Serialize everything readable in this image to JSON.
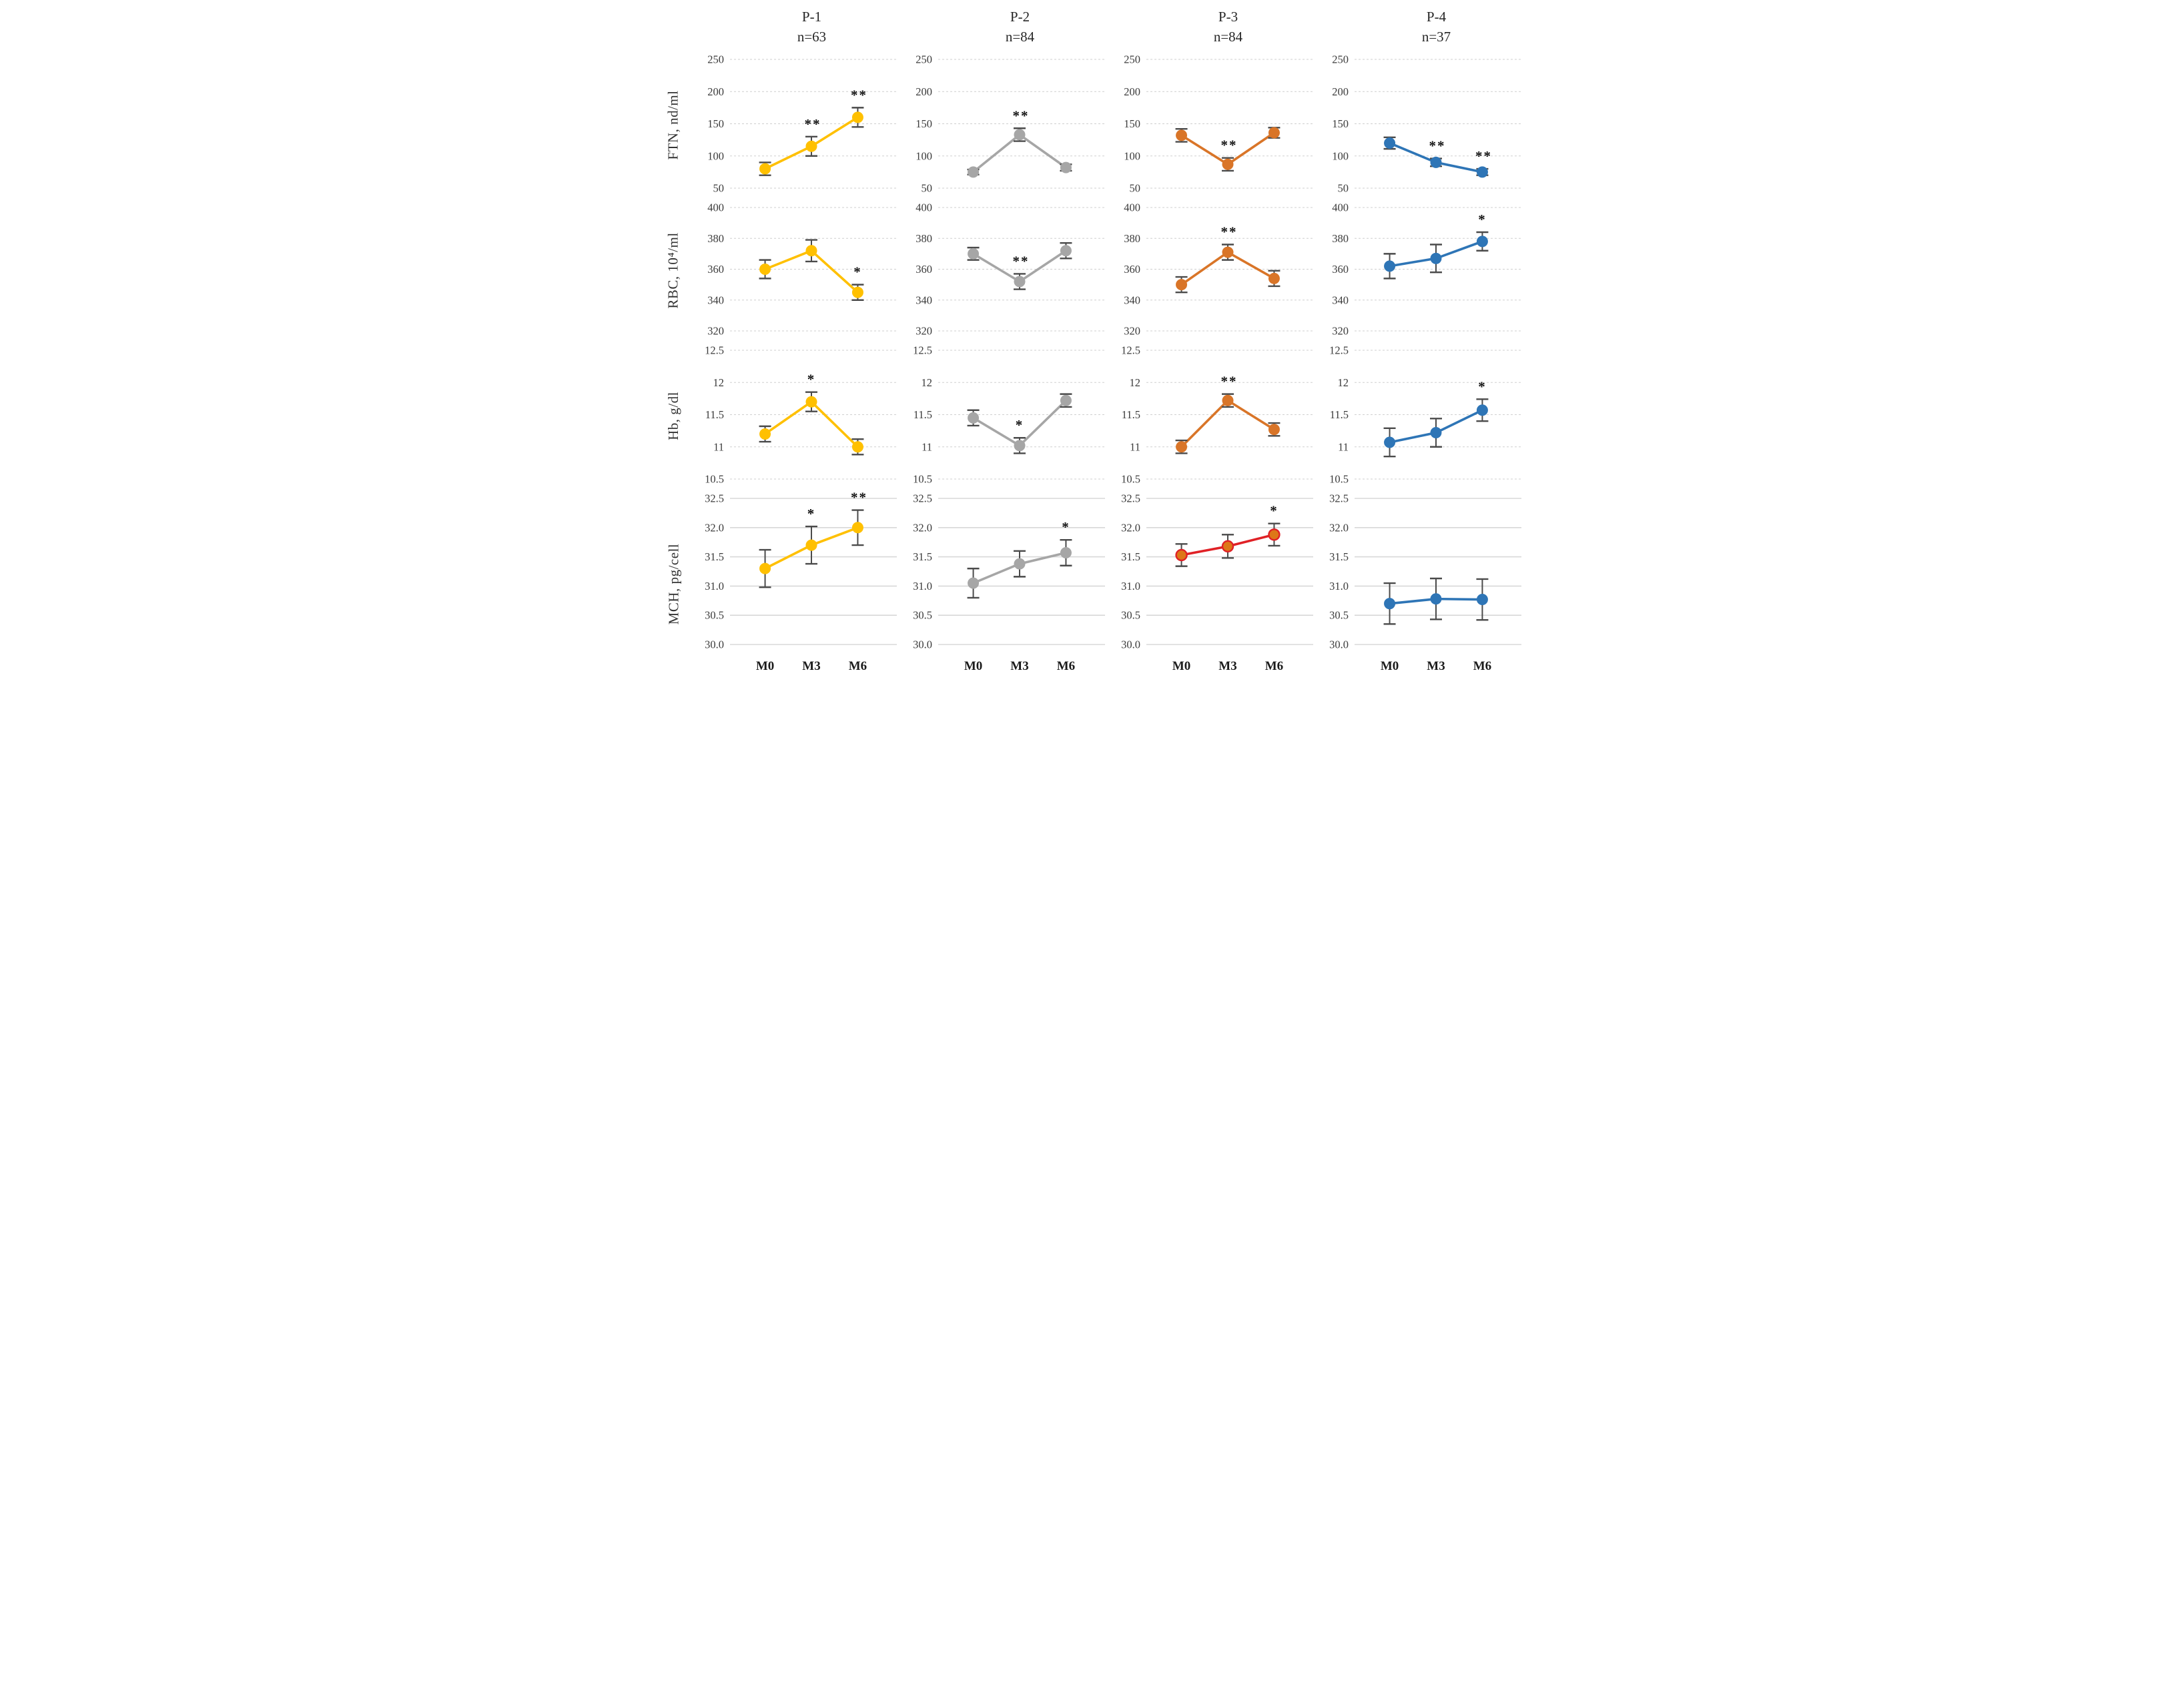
{
  "x_labels": [
    "M0",
    "M3",
    "M6"
  ],
  "chart_data": {
    "type": "line",
    "legend_position": "none",
    "grid": true,
    "x_categories": [
      "M0",
      "M3",
      "M6"
    ],
    "columns": [
      {
        "id": "P-1",
        "n": "n=63",
        "color": "#FFC000"
      },
      {
        "id": "P-2",
        "n": "n=84",
        "color": "#A6A6A6"
      },
      {
        "id": "P-3",
        "n": "n=84",
        "color": "#D97528"
      },
      {
        "id": "P-4",
        "n": "n=37",
        "color": "#2E75B6"
      }
    ],
    "rows": [
      {
        "ylabel": "FTN, nd/ml",
        "ylim": [
          50,
          250
        ],
        "tick_values": [
          250,
          200,
          150,
          100,
          50
        ],
        "tick_labels": [
          "250",
          "200",
          "150",
          "100",
          "50"
        ],
        "grid_style": "dashed",
        "series": [
          {
            "values": [
              80,
              115,
              160
            ],
            "errors": [
              10,
              15,
              15
            ],
            "sig": [
              "",
              "**",
              "**"
            ]
          },
          {
            "values": [
              75,
              133,
              82
            ],
            "errors": [
              4,
              10,
              5
            ],
            "sig": [
              "",
              "**",
              ""
            ]
          },
          {
            "values": [
              132,
              87,
              136
            ],
            "errors": [
              10,
              10,
              8
            ],
            "sig": [
              "",
              "**",
              ""
            ]
          },
          {
            "values": [
              120,
              90,
              75
            ],
            "errors": [
              9,
              6,
              5
            ],
            "sig": [
              "",
              "**",
              "**"
            ]
          }
        ]
      },
      {
        "ylabel": "RBC, 10⁴/ml",
        "ylim": [
          320,
          400
        ],
        "tick_values": [
          400,
          380,
          360,
          340,
          320
        ],
        "tick_labels": [
          "400",
          "380",
          "360",
          "340",
          "320"
        ],
        "grid_style": "dashed",
        "series": [
          {
            "values": [
              360,
              372,
              345
            ],
            "errors": [
              6,
              7,
              5
            ],
            "sig": [
              "",
              "",
              "*"
            ]
          },
          {
            "values": [
              370,
              352,
              372
            ],
            "errors": [
              4,
              5,
              5
            ],
            "sig": [
              "",
              "**",
              ""
            ]
          },
          {
            "values": [
              350,
              371,
              354
            ],
            "errors": [
              5,
              5,
              5
            ],
            "sig": [
              "",
              "**",
              ""
            ]
          },
          {
            "values": [
              362,
              367,
              378
            ],
            "errors": [
              8,
              9,
              6
            ],
            "sig": [
              "",
              "",
              "*"
            ]
          }
        ]
      },
      {
        "ylabel": "Hb, g/dl",
        "ylim": [
          10.5,
          12.5
        ],
        "tick_values": [
          12.5,
          12,
          11.5,
          11,
          10.5
        ],
        "tick_labels": [
          "12.5",
          "12",
          "11.5",
          "11",
          "10.5"
        ],
        "grid_style": "dashed",
        "series": [
          {
            "values": [
              11.2,
              11.7,
              11.0
            ],
            "errors": [
              0.12,
              0.15,
              0.12
            ],
            "sig": [
              "",
              "*",
              ""
            ]
          },
          {
            "values": [
              11.45,
              11.02,
              11.72
            ],
            "errors": [
              0.12,
              0.12,
              0.1
            ],
            "sig": [
              "",
              "*",
              ""
            ]
          },
          {
            "values": [
              11.0,
              11.72,
              11.27
            ],
            "errors": [
              0.1,
              0.1,
              0.1
            ],
            "sig": [
              "",
              "**",
              ""
            ]
          },
          {
            "values": [
              11.07,
              11.22,
              11.57
            ],
            "errors": [
              0.22,
              0.22,
              0.17
            ],
            "sig": [
              "",
              "",
              "*"
            ]
          }
        ]
      },
      {
        "ylabel": "MCH, pg/cell",
        "ylim": [
          30.0,
          32.5
        ],
        "tick_values": [
          32.5,
          32.0,
          31.5,
          31.0,
          30.5,
          30.0
        ],
        "tick_labels": [
          "32.5",
          "32.0",
          "31.5",
          "31.0",
          "30.5",
          "30.0"
        ],
        "grid_style": "solid",
        "series": [
          {
            "values": [
              31.3,
              31.7,
              32.0
            ],
            "errors": [
              0.32,
              0.32,
              0.3
            ],
            "sig": [
              "",
              "*",
              "**"
            ]
          },
          {
            "values": [
              31.05,
              31.38,
              31.57
            ],
            "errors": [
              0.25,
              0.22,
              0.22
            ],
            "sig": [
              "",
              "",
              "*"
            ]
          },
          {
            "values": [
              31.53,
              31.68,
              31.88
            ],
            "errors": [
              0.19,
              0.2,
              0.19
            ],
            "sig": [
              "",
              "",
              "*"
            ],
            "line_color": "#E02126",
            "marker_fill": "#DD7718",
            "marker_stroke": "#E02126"
          },
          {
            "values": [
              30.7,
              30.78,
              30.77
            ],
            "errors": [
              0.35,
              0.35,
              0.35
            ],
            "sig": [
              "",
              "",
              ""
            ]
          }
        ]
      }
    ]
  }
}
